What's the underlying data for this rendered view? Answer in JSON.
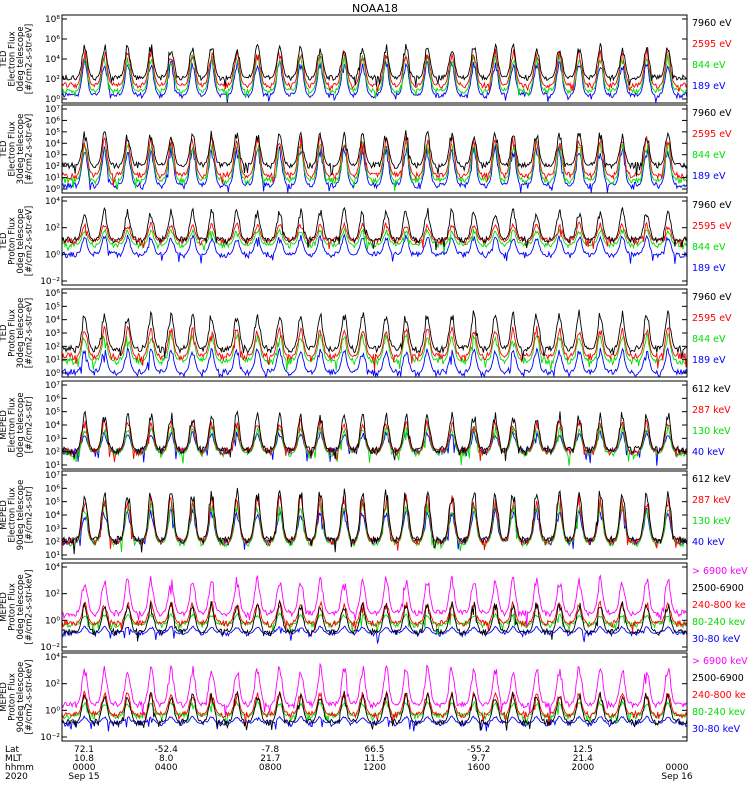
{
  "title": "NOAA18",
  "colors": {
    "black": "#000000",
    "red": "#ff0000",
    "green": "#00dd00",
    "blue": "#0000ff",
    "magenta": "#ff00ff"
  },
  "panels": [
    {
      "ylabel": [
        "TED",
        "Electron Flux",
        "0deg telescope",
        "[#/cm2-s-str-eV]"
      ],
      "yticks": [
        "10⁸",
        "10⁶",
        "10⁴",
        "10²",
        "10⁰"
      ],
      "legend": [
        {
          "text": "7960 eV",
          "color": "#000000"
        },
        {
          "text": "2595 eV",
          "color": "#ff0000"
        },
        {
          "text": "844 eV",
          "color": "#00dd00"
        },
        {
          "text": "189 eV",
          "color": "#0000ff"
        }
      ],
      "ylim_log10": [
        0,
        8
      ],
      "baseline_log10": [
        2.3,
        1.6,
        1.1,
        0.7
      ],
      "peak_log10": [
        5.5,
        5.0,
        4.5,
        4.0
      ]
    },
    {
      "ylabel": [
        "TED",
        "Electron Flux",
        "30deg telescope",
        "[#/cm2-s-str-eV]"
      ],
      "yticks": [
        "10⁷",
        "10⁶",
        "10⁵",
        "10⁴",
        "10³",
        "10²",
        "10¹",
        "10⁰"
      ],
      "legend": [
        {
          "text": "7960 eV",
          "color": "#000000"
        },
        {
          "text": "2595 eV",
          "color": "#ff0000"
        },
        {
          "text": "844 eV",
          "color": "#00dd00"
        },
        {
          "text": "189 eV",
          "color": "#0000ff"
        }
      ],
      "ylim_log10": [
        0,
        7
      ],
      "baseline_log10": [
        2.2,
        1.4,
        1.0,
        0.6
      ],
      "peak_log10": [
        5.0,
        4.6,
        4.2,
        3.8
      ]
    },
    {
      "ylabel": [
        "TED",
        "Proton Flux",
        "0deg telescope",
        "[#/cm2-s-str-eV]"
      ],
      "yticks": [
        "10⁴",
        "10²",
        "10⁰",
        "10⁻²"
      ],
      "legend": [
        {
          "text": "7960 eV",
          "color": "#000000"
        },
        {
          "text": "2595 eV",
          "color": "#ff0000"
        },
        {
          "text": "844 eV",
          "color": "#00dd00"
        },
        {
          "text": "189 eV",
          "color": "#0000ff"
        }
      ],
      "ylim_log10": [
        -2,
        5
      ],
      "baseline_log10": [
        1.6,
        1.5,
        1.2,
        0.4
      ],
      "peak_log10": [
        4.2,
        3.0,
        2.5,
        2.0
      ]
    },
    {
      "ylabel": [
        "TED",
        "Proton Flux",
        "30deg telescope",
        "[#/cm2-s-str-eV]"
      ],
      "yticks": [
        "10⁶",
        "10⁵",
        "10⁴",
        "10³",
        "10²",
        "10¹",
        "10⁰"
      ],
      "legend": [
        {
          "text": "7960 eV",
          "color": "#000000"
        },
        {
          "text": "2595 eV",
          "color": "#ff0000"
        },
        {
          "text": "844 eV",
          "color": "#00dd00"
        },
        {
          "text": "189 eV",
          "color": "#0000ff"
        }
      ],
      "ylim_log10": [
        0,
        6
      ],
      "baseline_log10": [
        1.9,
        1.4,
        1.1,
        0.3
      ],
      "peak_log10": [
        4.6,
        3.5,
        3.0,
        2.0
      ]
    },
    {
      "ylabel": [
        "MEPED",
        "Electron Flux",
        "0deg telescope",
        "[#/cm2-s-str]"
      ],
      "yticks": [
        "10⁷",
        "10⁶",
        "10⁵",
        "10⁴",
        "10³",
        "10²",
        "10¹"
      ],
      "legend": [
        {
          "text": "612 keV",
          "color": "#000000"
        },
        {
          "text": "287 keV",
          "color": "#ff0000"
        },
        {
          "text": "130 keV",
          "color": "#00dd00"
        },
        {
          "text": "40 keV",
          "color": "#0000ff"
        }
      ],
      "ylim_log10": [
        1,
        7
      ],
      "baseline_log10": [
        2.3,
        2.2,
        2.1,
        2.2
      ],
      "peak_log10": [
        5.0,
        4.5,
        4.0,
        3.6
      ]
    },
    {
      "ylabel": [
        "MEPED",
        "Electron Flux",
        "90deg telescope",
        "[#/cm2-s-str]"
      ],
      "yticks": [
        "10⁷",
        "10⁶",
        "10⁵",
        "10⁴",
        "10³",
        "10²",
        "10¹"
      ],
      "legend": [
        {
          "text": "612 keV",
          "color": "#000000"
        },
        {
          "text": "287 keV",
          "color": "#ff0000"
        },
        {
          "text": "130 keV",
          "color": "#00dd00"
        },
        {
          "text": "40 keV",
          "color": "#0000ff"
        }
      ],
      "ylim_log10": [
        1,
        7
      ],
      "baseline_log10": [
        2.3,
        2.2,
        2.1,
        2.2
      ],
      "peak_log10": [
        6.0,
        5.5,
        5.0,
        4.5
      ]
    },
    {
      "ylabel": [
        "MEPED",
        "Proton Flux",
        "0deg telescope",
        "[#/cm2-s-str-keV]"
      ],
      "yticks": [
        "10⁴",
        "10²",
        "10⁰",
        "10⁻²"
      ],
      "legend": [
        {
          "text": "> 6900 keV",
          "color": "#ff00ff"
        },
        {
          "text": "2500-6900",
          "color": "#000000"
        },
        {
          "text": "240-800 ke",
          "color": "#ff0000"
        },
        {
          "text": "80-240 kev",
          "color": "#00dd00"
        },
        {
          "text": "30-80 keV",
          "color": "#0000ff"
        }
      ],
      "ylim_log10": [
        -2,
        5
      ],
      "baseline_log10": [
        1.0,
        -0.5,
        0.2,
        0.1,
        -0.6
      ],
      "peak_log10": [
        4.0,
        2.0,
        2.0,
        1.0,
        0.0
      ]
    },
    {
      "ylabel": [
        "MEPED",
        "Proton Flux",
        "90deg telescope",
        "[#/cm2-s-str-keV]"
      ],
      "yticks": [
        "10⁴",
        "10²",
        "10⁰",
        "10⁻²"
      ],
      "legend": [
        {
          "text": "> 6900 keV",
          "color": "#ff00ff"
        },
        {
          "text": "2500-6900",
          "color": "#000000"
        },
        {
          "text": "240-800 ke",
          "color": "#ff0000"
        },
        {
          "text": "80-240 kev",
          "color": "#00dd00"
        },
        {
          "text": "30-80 keV",
          "color": "#0000ff"
        }
      ],
      "ylim_log10": [
        -2,
        5
      ],
      "baseline_log10": [
        0.9,
        -0.5,
        0.1,
        0.0,
        -0.6
      ],
      "peak_log10": [
        4.2,
        2.0,
        2.0,
        1.2,
        0.0
      ]
    }
  ],
  "xaxis": {
    "row_labels": [
      "Lat",
      "MLT",
      "hhmm",
      "2020"
    ],
    "ticks": [
      {
        "lat": "72.1",
        "mlt": "10.8",
        "hhmm": "0000",
        "date": "Sep 15"
      },
      {
        "lat": "-52.4",
        "mlt": "8.0",
        "hhmm": "0400",
        "date": ""
      },
      {
        "lat": "-7.8",
        "mlt": "21.7",
        "hhmm": "0800",
        "date": ""
      },
      {
        "lat": "66.5",
        "mlt": "11.5",
        "hhmm": "1200",
        "date": ""
      },
      {
        "lat": "-55.2",
        "mlt": "9.7",
        "hhmm": "1600",
        "date": ""
      },
      {
        "lat": "12.5",
        "mlt": "21.4",
        "hhmm": "2000",
        "date": ""
      },
      {
        "lat": "",
        "mlt": "",
        "hhmm": "0000",
        "date": "Sep 16"
      }
    ]
  },
  "chart_data": {
    "type": "line",
    "title": "NOAA18",
    "x_range": [
      "2020 Sep 15 0000",
      "2020 Sep 16 0000"
    ],
    "x_ticks": [
      "0000",
      "0400",
      "0800",
      "1200",
      "1600",
      "2000",
      "0000"
    ],
    "yscale": "log",
    "pass_count": 28,
    "description_series": [
      "TED Electron Flux 0deg: 7960 eV, 2595 eV, 844 eV, 189 eV",
      "TED Electron Flux 30deg: 7960 eV, 2595 eV, 844 eV, 189 eV",
      "TED Proton Flux 0deg: 7960 eV, 2595 eV, 844 eV, 189 eV",
      "TED Proton Flux 30deg: 7960 eV, 2595 eV, 844 eV, 189 eV",
      "MEPED Electron Flux 0deg: 612 keV, 287 keV, 130 keV, 40 keV",
      "MEPED Electron Flux 90deg: 612 keV, 287 keV, 130 keV, 40 keV",
      "MEPED Proton Flux 0deg: > 6900 keV, 2500-6900, 240-800 ke, 80-240 kev, 30-80 keV",
      "MEPED Proton Flux 90deg: > 6900 keV, 2500-6900, 240-800 ke, 80-240 kev, 30-80 keV"
    ]
  }
}
